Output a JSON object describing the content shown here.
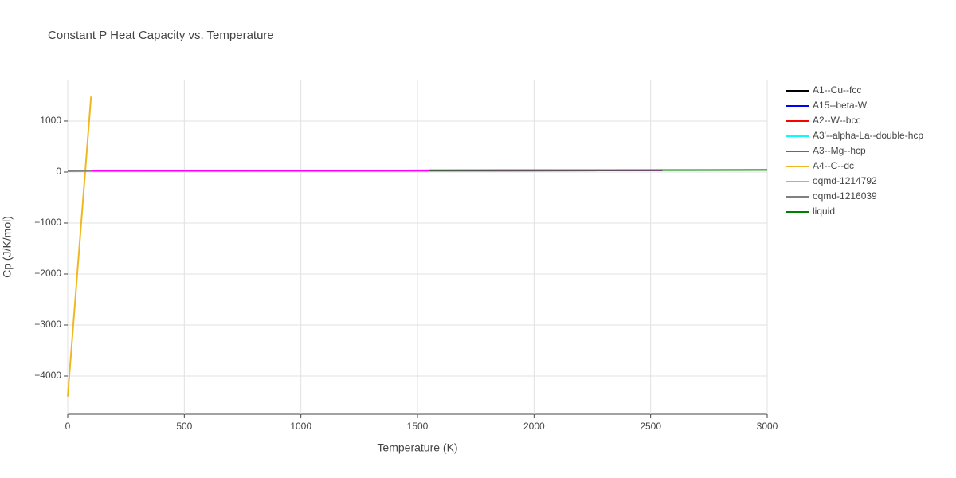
{
  "chart_data": {
    "type": "line",
    "title": "Constant P Heat Capacity vs. Temperature",
    "x_label": "Temperature (K)",
    "y_label": "Cp (J/K/mol)",
    "xlim": [
      0,
      3000
    ],
    "ylim": [
      -4750,
      1812
    ],
    "xticks": [
      0,
      500,
      1000,
      1500,
      2000,
      2500,
      3000
    ],
    "yticks": [
      {
        "value": -4000,
        "label": "−4000"
      },
      {
        "value": -3000,
        "label": "−3000"
      },
      {
        "value": -2000,
        "label": "−2000"
      },
      {
        "value": -1000,
        "label": "−1000"
      },
      0,
      1000
    ],
    "grid": true,
    "legend": "right",
    "series": [
      {
        "name": "A1--Cu--fcc",
        "color": "#000000",
        "x": [
          100,
          500,
          1000,
          1550
        ],
        "values": [
          24,
          26,
          29,
          32
        ]
      },
      {
        "name": "A15--beta-W",
        "color": "#0000ff",
        "x": [
          100,
          1000,
          2550
        ],
        "values": [
          23,
          27,
          31
        ]
      },
      {
        "name": "A2--W--bcc",
        "color": "#ff0000",
        "x": [
          100,
          1000,
          2550
        ],
        "values": [
          23,
          27,
          32
        ]
      },
      {
        "name": "A3'--alpha-La--double-hcp",
        "color": "#00ffff",
        "x": [
          100,
          1000,
          2550
        ],
        "values": [
          23,
          27,
          31
        ]
      },
      {
        "name": "A3--Mg--hcp",
        "color": "#ff00ff",
        "x": [
          100,
          1000,
          2550
        ],
        "values": [
          23,
          27,
          31
        ]
      },
      {
        "name": "A4--C--dc",
        "color": "#f0b820",
        "x": [
          0,
          100
        ],
        "values": [
          -4400,
          1480
        ]
      },
      {
        "name": "oqmd-1214792",
        "color": "#ffa500",
        "x": [
          0,
          100
        ],
        "values": [
          18,
          22
        ]
      },
      {
        "name": "oqmd-1216039",
        "color": "#808080",
        "x": [
          0,
          100
        ],
        "values": [
          20,
          24
        ]
      },
      {
        "name": "liquid",
        "color": "#008000",
        "x": [
          1550,
          3000
        ],
        "values": [
          35,
          40
        ]
      }
    ]
  }
}
